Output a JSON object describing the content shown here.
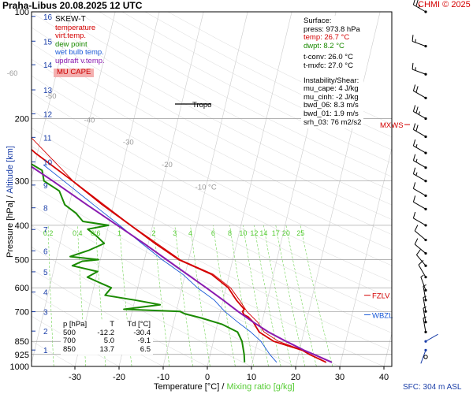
{
  "header": {
    "station_date": "Praha-Libus   20.08.2025 12 UTC",
    "copyright": "CHMI © 2025"
  },
  "legend": {
    "title": "SKEW-T",
    "items": [
      {
        "label": "temperature",
        "color": "#d40000"
      },
      {
        "label": "virt.temp.",
        "color": "#d40000"
      },
      {
        "label": "dew point",
        "color": "#1a8a00"
      },
      {
        "label": "wet bulb temp.",
        "color": "#1a5ad8"
      },
      {
        "label": "updraft v.temp.",
        "color": "#8a1ab0"
      }
    ],
    "mu_cape_label": "MU CAPE"
  },
  "surface_info": {
    "title": "Surface:",
    "press": "press: 973.8 hPa",
    "temp": "temp: 26.7 °C",
    "dwpt": "dwpt: 8.2 °C",
    "tconv": "t-conv: 26.0 °C",
    "tmxfc": "t-mxfc: 27.0 °C",
    "instab_title": "Instability/Shear:",
    "mu_cape": "mu_cape: 4 J/kg",
    "mu_cinh": "mu_cinh: -2 J/kg",
    "bwd_06": "bwd_06: 8.3 m/s",
    "bwd_01": "bwd_01: 1.9 m/s",
    "srh_03": "srh_03: 76 m2/s2"
  },
  "table": {
    "header": [
      "p [hPa]",
      "T",
      "Td [°C]"
    ],
    "rows": [
      [
        "500",
        "-12.2",
        "-30.4"
      ],
      [
        "700",
        "5.0",
        "-9.1"
      ],
      [
        "850",
        "13.7",
        "6.5"
      ]
    ]
  },
  "axes": {
    "x_title_1": "Temperature [°C]",
    "x_title_sep": " / ",
    "x_title_2": "Mixing ratio [g/kg]",
    "y_title_1": "Pressure [hPa]",
    "y_title_sep": " / ",
    "y_title_2": "Altitude [km]",
    "sfc": "SFC: 304 m ASL"
  },
  "markers": {
    "tropo": "Tropo",
    "mxws": "MXWS",
    "fzlv": "FZLV",
    "wbzl": "WBZL"
  },
  "colors": {
    "temperature": "#d40000",
    "dewpoint": "#1a8a00",
    "wetbulb": "#1a5ad8",
    "updraft": "#8a1ab0",
    "mixing": "#55cc33",
    "altitude": "#1a3ea8",
    "isobar": "#999999"
  },
  "chart_data": {
    "type": "line",
    "skew": "skew-T log-p",
    "x_label": "Temperature [°C]",
    "x_ticks": [
      -30,
      -20,
      -10,
      0,
      10,
      20,
      30,
      40
    ],
    "xlim_at_bottom": [
      -35,
      45
    ],
    "y_label": "Pressure [hPa]",
    "y_scale": "log",
    "ylim": [
      1000,
      100
    ],
    "pressure_ticks": [
      100,
      200,
      300,
      400,
      500,
      600,
      700,
      850,
      925,
      1000
    ],
    "altitude_ticks_km": [
      1,
      2,
      3,
      4,
      5,
      6,
      7,
      8,
      9,
      10,
      11,
      12,
      13,
      14,
      15,
      16
    ],
    "altitude_pressures": [
      899,
      795,
      701,
      617,
      541,
      472,
      411,
      357,
      308,
      265,
      226,
      194,
      166,
      141,
      121,
      103
    ],
    "isotherm_labels": [
      {
        "t": -80,
        "p": 112,
        "text": "-80 °C"
      },
      {
        "t": -70,
        "p": 129,
        "text": "-70"
      },
      {
        "t": -60,
        "p": 149,
        "text": "-60"
      },
      {
        "t": -50,
        "p": 173,
        "text": "-50"
      },
      {
        "t": -40,
        "p": 202,
        "text": "-40"
      },
      {
        "t": -30,
        "p": 233,
        "text": "-30"
      },
      {
        "t": -20,
        "p": 270,
        "text": "-20"
      },
      {
        "t": -10,
        "p": 312,
        "text": "-10 °C"
      }
    ],
    "mixing_ratio_labels": [
      "0.2",
      "0.4",
      "0.6",
      "1",
      "2",
      "3",
      "4",
      "6",
      "8",
      "10",
      "12",
      "14",
      "17",
      "20",
      "25"
    ],
    "mixing_ratio_values": [
      0.2,
      0.4,
      0.6,
      1,
      2,
      3,
      4,
      6,
      8,
      10,
      12,
      14,
      17,
      20,
      25
    ],
    "series": [
      {
        "name": "temperature",
        "points": [
          [
            973.8,
            26.7
          ],
          [
            925,
            22.5
          ],
          [
            900,
            20.6
          ],
          [
            850,
            13.7
          ],
          [
            800,
            9.9
          ],
          [
            750,
            8.0
          ],
          [
            725,
            6.6
          ],
          [
            715,
            5.5
          ],
          [
            700,
            5.0
          ],
          [
            690,
            5.3
          ],
          [
            650,
            3.0
          ],
          [
            600,
            0.5
          ],
          [
            550,
            -4.0
          ],
          [
            500,
            -12.2
          ],
          [
            450,
            -18.5
          ],
          [
            400,
            -25.0
          ],
          [
            350,
            -32.5
          ],
          [
            300,
            -40.5
          ],
          [
            250,
            -50.5
          ],
          [
            220,
            -56.5
          ],
          [
            200,
            -57.5
          ],
          [
            190,
            -58.0
          ],
          [
            180,
            -57.0
          ],
          [
            160,
            -56.0
          ],
          [
            140,
            -58.5
          ],
          [
            125,
            -60.5
          ],
          [
            110,
            -62.0
          ],
          [
            100,
            -62.5
          ]
        ]
      },
      {
        "name": "virt.temp.",
        "points": [
          [
            973.8,
            28.0
          ],
          [
            925,
            23.7
          ],
          [
            850,
            14.8
          ],
          [
            800,
            11.0
          ],
          [
            750,
            9.0
          ],
          [
            700,
            6.0
          ],
          [
            650,
            3.7
          ],
          [
            600,
            1.0
          ],
          [
            550,
            -3.6
          ],
          [
            500,
            -11.9
          ],
          [
            400,
            -24.9
          ],
          [
            300,
            -40.4
          ],
          [
            200,
            -57.4
          ],
          [
            100,
            -62.4
          ]
        ]
      },
      {
        "name": "dew point",
        "points": [
          [
            973.8,
            8.2
          ],
          [
            925,
            7.7
          ],
          [
            850,
            6.5
          ],
          [
            800,
            5.0
          ],
          [
            760,
            1.0
          ],
          [
            730,
            -4.0
          ],
          [
            710,
            -8.0
          ],
          [
            700,
            -9.1
          ],
          [
            690,
            -22.0
          ],
          [
            670,
            -14.0
          ],
          [
            650,
            -20.0
          ],
          [
            630,
            -27.0
          ],
          [
            600,
            -26.0
          ],
          [
            580,
            -29.0
          ],
          [
            560,
            -32.0
          ],
          [
            540,
            -30.0
          ],
          [
            520,
            -36.0
          ],
          [
            505,
            -34.0
          ],
          [
            500,
            -30.4
          ],
          [
            490,
            -37.0
          ],
          [
            470,
            -33.0
          ],
          [
            450,
            -30.0
          ],
          [
            430,
            -32.0
          ],
          [
            410,
            -34.5
          ],
          [
            400,
            -30.0
          ],
          [
            390,
            -36.0
          ],
          [
            370,
            -38.0
          ],
          [
            350,
            -41.0
          ],
          [
            320,
            -43.0
          ],
          [
            300,
            -47.0
          ],
          [
            280,
            -48.0
          ],
          [
            260,
            -53.0
          ],
          [
            240,
            -56.0
          ],
          [
            220,
            -61.0
          ],
          [
            205,
            -64.0
          ],
          [
            200,
            -66.0
          ],
          [
            190,
            -64.0
          ],
          [
            180,
            -70.0
          ],
          [
            172,
            -72.5
          ],
          [
            165,
            -75.0
          ],
          [
            150,
            -79.0
          ],
          [
            140,
            -81.0
          ],
          [
            125,
            -84.0
          ],
          [
            110,
            -86.0
          ],
          [
            100,
            -88.0
          ]
        ]
      },
      {
        "name": "wet bulb temp.",
        "points": [
          [
            973.8,
            15.5
          ],
          [
            925,
            13.5
          ],
          [
            850,
            10.8
          ],
          [
            800,
            8.0
          ],
          [
            750,
            4.5
          ],
          [
            700,
            1.0
          ],
          [
            650,
            -2.0
          ],
          [
            600,
            -6.5
          ],
          [
            550,
            -10.5
          ],
          [
            500,
            -16.0
          ],
          [
            450,
            -21.5
          ],
          [
            400,
            -27.5
          ],
          [
            350,
            -34.5
          ],
          [
            300,
            -42.5
          ],
          [
            270,
            -48.0
          ]
        ]
      },
      {
        "name": "updraft v.temp.",
        "points": [
          [
            973.8,
            28.0
          ],
          [
            925,
            23.5
          ],
          [
            900,
            21.0
          ],
          [
            850,
            16.5
          ],
          [
            800,
            12.0
          ],
          [
            750,
            8.0
          ],
          [
            700,
            4.0
          ],
          [
            650,
            0.0
          ],
          [
            600,
            -4.5
          ],
          [
            550,
            -9.5
          ],
          [
            500,
            -15.0
          ],
          [
            450,
            -21.0
          ],
          [
            400,
            -28.0
          ],
          [
            350,
            -36.0
          ],
          [
            300,
            -45.0
          ],
          [
            250,
            -56.0
          ],
          [
            200,
            -68.0
          ],
          [
            150,
            -83.0
          ],
          [
            100,
            -102.0
          ]
        ]
      }
    ],
    "tropopause_hPa": 182,
    "mxws_hPa": 208,
    "fzlv_hPa": 630,
    "wbzl_hPa": 715,
    "wind_barbs": [
      {
        "p": 100,
        "dir": 300,
        "spd": 25
      },
      {
        "p": 125,
        "dir": 290,
        "spd": 15
      },
      {
        "p": 150,
        "dir": 290,
        "spd": 15
      },
      {
        "p": 175,
        "dir": 300,
        "spd": 20
      },
      {
        "p": 200,
        "dir": 300,
        "spd": 25
      },
      {
        "p": 225,
        "dir": 300,
        "spd": 20
      },
      {
        "p": 250,
        "dir": 300,
        "spd": 15
      },
      {
        "p": 275,
        "dir": 300,
        "spd": 15
      },
      {
        "p": 300,
        "dir": 300,
        "spd": 15
      },
      {
        "p": 330,
        "dir": 300,
        "spd": 10
      },
      {
        "p": 360,
        "dir": 300,
        "spd": 10
      },
      {
        "p": 400,
        "dir": 300,
        "spd": 10
      },
      {
        "p": 440,
        "dir": 310,
        "spd": 10
      },
      {
        "p": 480,
        "dir": 310,
        "spd": 10
      },
      {
        "p": 520,
        "dir": 320,
        "spd": 10
      },
      {
        "p": 560,
        "dir": 330,
        "spd": 10
      },
      {
        "p": 610,
        "dir": 340,
        "spd": 5
      },
      {
        "p": 650,
        "dir": 350,
        "spd": 5
      },
      {
        "p": 700,
        "dir": 350,
        "spd": 5
      },
      {
        "p": 750,
        "dir": 350,
        "spd": 5
      },
      {
        "p": 800,
        "dir": 350,
        "spd": 5
      },
      {
        "p": 850,
        "dir": 60,
        "spd": 2
      },
      {
        "p": 900,
        "dir": 200,
        "spd": 2
      },
      {
        "p": 940,
        "dir": 220,
        "spd": 0
      }
    ]
  }
}
